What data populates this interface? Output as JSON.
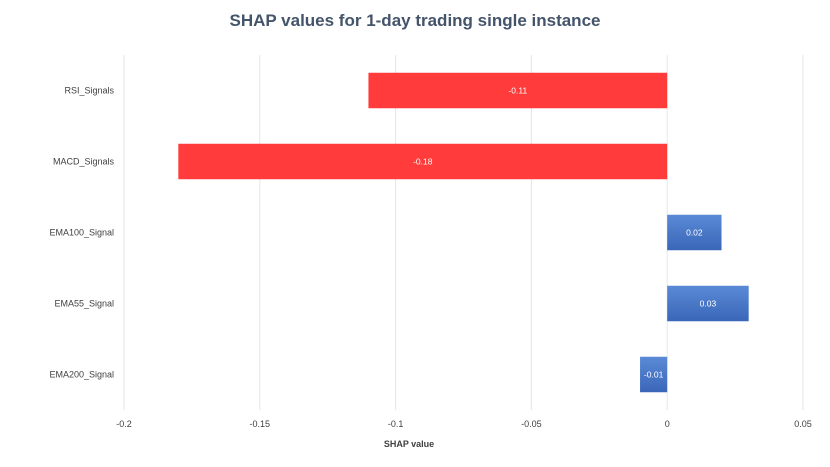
{
  "chart_data": {
    "type": "bar",
    "orientation": "horizontal",
    "title": "SHAP values for 1-day trading single instance",
    "xlabel": "SHAP value",
    "ylabel": "",
    "categories": [
      "RSI_Signals",
      "MACD_Signals",
      "EMA100_Signal",
      "EMA55_Signal",
      "EMA200_Signal"
    ],
    "values": [
      -0.11,
      -0.18,
      0.02,
      0.03,
      -0.01
    ],
    "data_labels": [
      "-0.11",
      "-0.18",
      "0.02",
      "0.03",
      "-0.01"
    ],
    "bar_colors": [
      "#ff3b3b",
      "#ff3b3b",
      "#4472c4",
      "#4472c4",
      "#4472c4"
    ],
    "xlim": [
      -0.2,
      0.05
    ],
    "xticks": [
      -0.2,
      -0.15,
      -0.1,
      -0.05,
      0,
      0.05
    ],
    "xtick_labels": [
      "-0.2",
      "-0.15",
      "-0.1",
      "-0.05",
      "0",
      "0.05"
    ],
    "grid": true,
    "legend": "none"
  }
}
